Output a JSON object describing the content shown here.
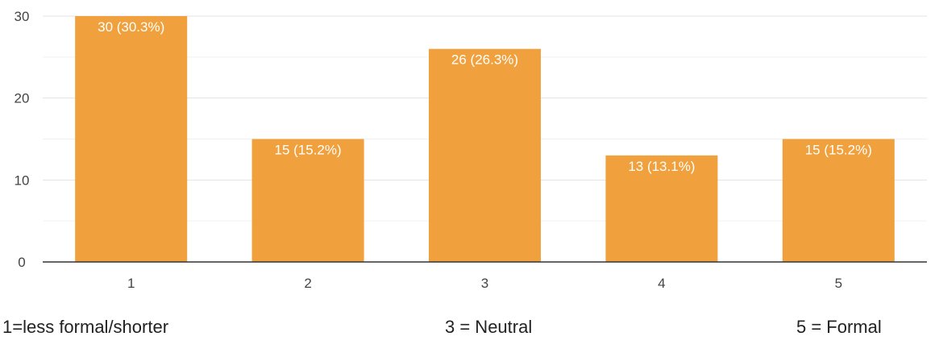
{
  "chart_data": {
    "type": "bar",
    "categories": [
      "1",
      "2",
      "3",
      "4",
      "5"
    ],
    "values": [
      30,
      15,
      26,
      13,
      15
    ],
    "data_labels": [
      "30 (30.3%)",
      "15 (15.2%)",
      "26 (26.3%)",
      "13 (13.1%)",
      "15 (15.2%)"
    ],
    "yticks": [
      0,
      10,
      20,
      30
    ],
    "ylim": [
      0,
      30
    ],
    "grid": true,
    "bar_color": "#f0a03c",
    "title": "",
    "xlabel": "",
    "ylabel": ""
  },
  "scale_notes": {
    "low": "1=less formal/shorter",
    "mid": "3 = Neutral",
    "high": "5 = Formal"
  }
}
